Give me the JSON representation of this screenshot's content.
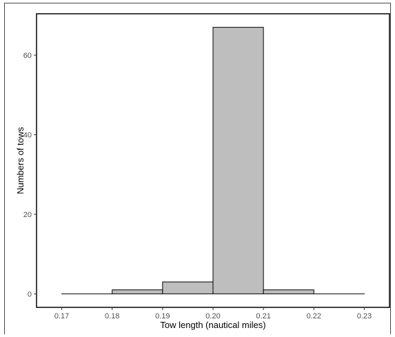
{
  "chart_data": {
    "type": "bar",
    "title": "",
    "xlabel": "Tow length (nautical miles)",
    "ylabel": "Numbers of tows",
    "bins": [
      {
        "x0": 0.17,
        "x1": 0.18,
        "count": 0
      },
      {
        "x0": 0.18,
        "x1": 0.19,
        "count": 1
      },
      {
        "x0": 0.19,
        "x1": 0.2,
        "count": 3
      },
      {
        "x0": 0.2,
        "x1": 0.21,
        "count": 67
      },
      {
        "x0": 0.21,
        "x1": 0.22,
        "count": 1
      },
      {
        "x0": 0.22,
        "x1": 0.23,
        "count": 0
      }
    ],
    "xlim": [
      0.165,
      0.235
    ],
    "ylim": [
      -3.4,
      70.4
    ],
    "x_ticks": [
      "0.17",
      "0.18",
      "0.19",
      "0.20",
      "0.21",
      "0.22",
      "0.23"
    ],
    "y_ticks": [
      "0",
      "20",
      "40",
      "60"
    ],
    "grid": false,
    "bar_fill": "#bebebe",
    "bar_stroke": "#000000"
  }
}
